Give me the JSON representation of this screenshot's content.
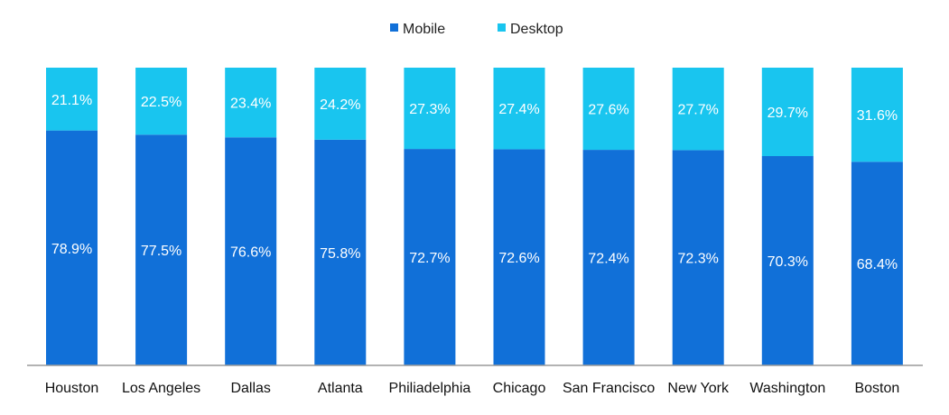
{
  "chart_data": {
    "type": "bar",
    "stacked": true,
    "categories": [
      "Houston",
      "Los Angeles",
      "Dallas",
      "Atlanta",
      "Philiadelphia",
      "Chicago",
      "San Francisco",
      "New York",
      "Washington",
      "Boston"
    ],
    "series": [
      {
        "name": "Mobile",
        "color": "#1170d8",
        "values": [
          78.9,
          77.5,
          76.6,
          75.8,
          72.7,
          72.6,
          72.4,
          72.3,
          70.3,
          68.4
        ],
        "labels": [
          "78.9%",
          "77.5%",
          "76.6%",
          "75.8%",
          "72.7%",
          "72.6%",
          "72.4%",
          "72.3%",
          "70.3%",
          "68.4%"
        ]
      },
      {
        "name": "Desktop",
        "color": "#19c5ef",
        "values": [
          21.1,
          22.5,
          23.4,
          24.2,
          27.3,
          27.4,
          27.6,
          27.7,
          29.7,
          31.6
        ],
        "labels": [
          "21.1%",
          "22.5%",
          "23.4%",
          "24.2%",
          "27.3%",
          "27.4%",
          "27.6%",
          "27.7%",
          "29.7%",
          "31.6%"
        ]
      }
    ],
    "ylim": [
      0,
      100
    ],
    "grid": false,
    "legend_position": "top-center",
    "title": "",
    "xlabel": "",
    "ylabel": ""
  }
}
